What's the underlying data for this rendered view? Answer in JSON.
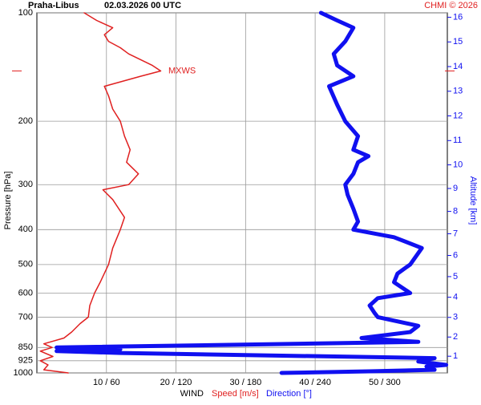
{
  "chart_data": {
    "type": "profile",
    "title": "Praha-Libus",
    "subtitle": "02.03.2026 00 UTC",
    "credit": "CHMI © 2026",
    "y_label": "Pressure [hPa]",
    "y2_label": "Altitude [km]",
    "x_label": "WIND",
    "speed_label": "Speed [m/s]",
    "direction_label": "Direction [°]",
    "ylim": [
      1000,
      100
    ],
    "log_y": true,
    "yticks": [
      100,
      200,
      300,
      400,
      500,
      600,
      700,
      850,
      925,
      1000
    ],
    "xlim": [
      0,
      59
    ],
    "x2lim": [
      0,
      354
    ],
    "xticks": [
      {
        "value": 10,
        "label": "10 / 60"
      },
      {
        "value": 20,
        "label": "20 / 120"
      },
      {
        "value": 30,
        "label": "30 / 180"
      },
      {
        "value": 40,
        "label": "40 / 240"
      },
      {
        "value": 50,
        "label": "50 / 300"
      }
    ],
    "y2ticks": [
      1,
      2,
      3,
      4,
      5,
      6,
      7,
      8,
      9,
      10,
      11,
      12,
      13,
      14,
      15,
      16
    ],
    "grid": true,
    "annotation": {
      "text": "MXWS",
      "pressure": 145,
      "color": "#e02020"
    },
    "series": [
      {
        "name": "Speed [m/s]",
        "color": "#e02020",
        "pressure": [
          1000,
          980,
          950,
          925,
          900,
          870,
          850,
          830,
          800,
          770,
          730,
          700,
          650,
          600,
          560,
          500,
          450,
          400,
          370,
          330,
          310,
          300,
          280,
          260,
          240,
          220,
          200,
          185,
          170,
          160,
          150,
          145,
          140,
          130,
          125,
          120,
          115,
          110,
          105,
          100
        ],
        "values": [
          4.5,
          1,
          1.6,
          0.5,
          2.3,
          0.5,
          2.2,
          1,
          3.9,
          5,
          6.2,
          7.4,
          7.6,
          8.3,
          9.1,
          10.3,
          10.9,
          12,
          12.6,
          10.9,
          9.5,
          13.2,
          14.6,
          12.9,
          13.4,
          12.6,
          12,
          10.9,
          10.3,
          9.7,
          14.9,
          17.8,
          16.6,
          13.2,
          12,
          10.3,
          9.7,
          10.9,
          8.6,
          6.8
        ]
      },
      {
        "name": "Direction [°]",
        "color": "#1010f0",
        "axis": "x2",
        "pressure": [
          1000,
          990,
          980,
          960,
          950,
          930,
          910,
          880,
          870,
          860,
          850,
          820,
          800,
          770,
          740,
          700,
          680,
          650,
          620,
          600,
          560,
          530,
          500,
          450,
          420,
          400,
          380,
          350,
          320,
          300,
          280,
          260,
          250,
          240,
          220,
          200,
          180,
          160,
          150,
          140,
          130,
          120,
          110,
          105,
          100
        ],
        "values": [
          211,
          287,
          343,
          336,
          353,
          329,
          343,
          72,
          17,
          72,
          17,
          329,
          280,
          322,
          329,
          294,
          291,
          287,
          294,
          322,
          308,
          311,
          322,
          332,
          308,
          273,
          277,
          273,
          268,
          266,
          273,
          277,
          286,
          273,
          277,
          266,
          259,
          252,
          273,
          259,
          256,
          266,
          273,
          259,
          245
        ]
      }
    ]
  }
}
